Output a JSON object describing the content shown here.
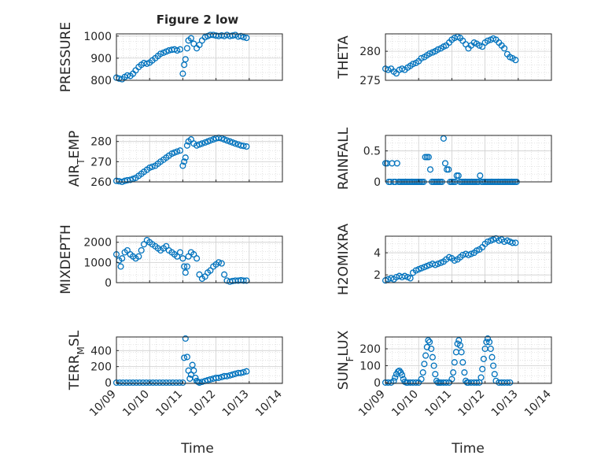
{
  "figure": {
    "title": "Figure 2 low",
    "x_axis_label": "Time",
    "x_ticks": [
      "10/09",
      "10/10",
      "10/11",
      "10/12",
      "10/13",
      "10/14"
    ],
    "marker_color": "#0072BD",
    "grid": "on (major + minor, dotted)"
  },
  "chart_data": [
    {
      "type": "scatter",
      "ylabel": "PRESSURE",
      "ylim": [
        800,
        1010
      ],
      "yticks": [
        "800",
        "900",
        "1000"
      ],
      "xlim": [
        "10/09",
        "10/14"
      ],
      "x": [
        9.0,
        9.08,
        9.17,
        9.25,
        9.33,
        9.42,
        9.5,
        9.58,
        9.67,
        9.75,
        9.83,
        9.92,
        10.0,
        10.08,
        10.17,
        10.25,
        10.33,
        10.42,
        10.5,
        10.58,
        10.67,
        10.75,
        10.83,
        10.92,
        11.0,
        11.04,
        11.08,
        11.13,
        11.17,
        11.25,
        11.33,
        11.42,
        11.5,
        11.58,
        11.67,
        11.75,
        11.83,
        11.92,
        12.0,
        12.08,
        12.17,
        12.25,
        12.33,
        12.42,
        12.5,
        12.58,
        12.67,
        12.75,
        12.83,
        12.92
      ],
      "y": [
        812,
        808,
        805,
        815,
        822,
        820,
        830,
        845,
        860,
        870,
        878,
        875,
        880,
        890,
        900,
        910,
        920,
        925,
        930,
        935,
        938,
        940,
        935,
        940,
        830,
        870,
        895,
        945,
        980,
        990,
        965,
        945,
        960,
        980,
        995,
        1000,
        1005,
        1005,
        1002,
        1000,
        1003,
        1000,
        1005,
        1000,
        1002,
        1005,
        998,
        1000,
        995,
        992
      ]
    },
    {
      "type": "scatter",
      "ylabel": "THETA",
      "ylim": [
        275,
        283
      ],
      "yticks": [
        "275",
        "280"
      ],
      "xlim": [
        "10/09",
        "10/14"
      ],
      "x": [
        9.0,
        9.08,
        9.17,
        9.25,
        9.33,
        9.42,
        9.5,
        9.58,
        9.67,
        9.75,
        9.83,
        9.92,
        10.0,
        10.08,
        10.17,
        10.25,
        10.33,
        10.42,
        10.5,
        10.58,
        10.67,
        10.75,
        10.83,
        10.92,
        11.0,
        11.08,
        11.17,
        11.25,
        11.33,
        11.42,
        11.5,
        11.58,
        11.67,
        11.75,
        11.83,
        11.92,
        12.0,
        12.08,
        12.17,
        12.25,
        12.33,
        12.42,
        12.5,
        12.58,
        12.67,
        12.75,
        12.83,
        12.92
      ],
      "y": [
        277.0,
        276.8,
        277.0,
        276.5,
        276.2,
        276.8,
        277.0,
        276.8,
        277.2,
        277.5,
        277.8,
        278.0,
        278.3,
        278.8,
        279.0,
        279.3,
        279.6,
        279.8,
        280.0,
        280.3,
        280.5,
        280.8,
        281.0,
        281.5,
        282.0,
        282.3,
        282.5,
        282.3,
        281.8,
        281.2,
        280.5,
        281.0,
        281.5,
        281.3,
        281.0,
        280.8,
        281.5,
        281.8,
        282.0,
        282.2,
        282.0,
        281.5,
        281.0,
        280.5,
        279.5,
        279.0,
        278.8,
        278.5
      ]
    },
    {
      "type": "scatter",
      "ylabel": "AIR_TEMP",
      "ylim": [
        260,
        283
      ],
      "yticks": [
        "260",
        "270",
        "280"
      ],
      "xlim": [
        "10/09",
        "10/14"
      ],
      "x": [
        9.0,
        9.08,
        9.17,
        9.25,
        9.33,
        9.42,
        9.5,
        9.58,
        9.67,
        9.75,
        9.83,
        9.92,
        10.0,
        10.08,
        10.17,
        10.25,
        10.33,
        10.42,
        10.5,
        10.58,
        10.67,
        10.75,
        10.83,
        10.92,
        11.0,
        11.04,
        11.08,
        11.13,
        11.17,
        11.25,
        11.33,
        11.42,
        11.5,
        11.58,
        11.67,
        11.75,
        11.83,
        11.92,
        12.0,
        12.08,
        12.17,
        12.25,
        12.33,
        12.42,
        12.5,
        12.58,
        12.67,
        12.75,
        12.83,
        12.92
      ],
      "y": [
        260.5,
        260.3,
        260.0,
        260.5,
        260.8,
        261.0,
        261.5,
        262.0,
        263.0,
        264.0,
        265.0,
        266.0,
        267.0,
        267.5,
        268.0,
        269.0,
        270.0,
        271.0,
        272.0,
        273.0,
        274.0,
        274.5,
        275.0,
        275.5,
        268.0,
        270.0,
        272.0,
        278.0,
        280.0,
        281.0,
        279.0,
        278.0,
        278.5,
        279.0,
        279.5,
        280.0,
        280.5,
        281.0,
        281.5,
        281.8,
        281.5,
        281.0,
        280.5,
        280.0,
        279.5,
        279.0,
        278.5,
        278.0,
        277.8,
        277.5
      ]
    },
    {
      "type": "scatter",
      "ylabel": "RAINFALL",
      "ylim": [
        0,
        0.75
      ],
      "yticks": [
        "0",
        "0.5"
      ],
      "xlim": [
        "10/09",
        "10/14"
      ],
      "x": [
        9.0,
        9.05,
        9.1,
        9.15,
        9.2,
        9.25,
        9.3,
        9.35,
        9.4,
        9.45,
        9.5,
        9.55,
        9.6,
        9.65,
        9.7,
        9.75,
        9.8,
        9.85,
        9.9,
        9.95,
        10.0,
        10.05,
        10.1,
        10.15,
        10.2,
        10.25,
        10.3,
        10.35,
        10.4,
        10.45,
        10.5,
        10.55,
        10.6,
        10.65,
        10.7,
        10.75,
        10.8,
        10.85,
        10.9,
        10.95,
        11.0,
        11.05,
        11.1,
        11.15,
        11.2,
        11.25,
        11.3,
        11.35,
        11.4,
        11.45,
        11.5,
        11.55,
        11.6,
        11.65,
        11.7,
        11.75,
        11.8,
        11.85,
        11.9,
        11.95,
        12.0,
        12.05,
        12.1,
        12.15,
        12.2,
        12.25,
        12.3,
        12.35,
        12.4,
        12.45,
        12.5,
        12.55,
        12.6,
        12.65,
        12.7,
        12.75,
        12.8,
        12.85,
        12.9,
        12.95
      ],
      "y": [
        0.3,
        0.3,
        0,
        0,
        0.3,
        0,
        0,
        0.3,
        0,
        0,
        0,
        0,
        0,
        0,
        0,
        0,
        0,
        0,
        0,
        0,
        0,
        0,
        0,
        0,
        0.4,
        0.4,
        0.4,
        0.2,
        0,
        0,
        0,
        0,
        0,
        0,
        0,
        0.7,
        0.3,
        0.2,
        0.2,
        0,
        0,
        0,
        0,
        0.1,
        0.1,
        0,
        0,
        0,
        0,
        0,
        0,
        0,
        0,
        0,
        0,
        0,
        0,
        0.1,
        0,
        0,
        0,
        0,
        0,
        0,
        0,
        0,
        0,
        0,
        0,
        0,
        0,
        0,
        0,
        0,
        0,
        0,
        0,
        0,
        0,
        0
      ]
    },
    {
      "type": "scatter",
      "ylabel": "MIXDEPTH",
      "ylim": [
        0,
        2300
      ],
      "yticks": [
        "0",
        "1000",
        "2000"
      ],
      "xlim": [
        "10/09",
        "10/14"
      ],
      "x": [
        9.0,
        9.08,
        9.13,
        9.17,
        9.25,
        9.33,
        9.42,
        9.5,
        9.58,
        9.67,
        9.75,
        9.83,
        9.92,
        10.0,
        10.08,
        10.17,
        10.25,
        10.33,
        10.42,
        10.5,
        10.58,
        10.67,
        10.75,
        10.83,
        10.92,
        11.0,
        11.04,
        11.08,
        11.13,
        11.17,
        11.25,
        11.33,
        11.42,
        11.5,
        11.58,
        11.67,
        11.75,
        11.83,
        11.92,
        12.0,
        12.08,
        12.17,
        12.25,
        12.33,
        12.42,
        12.5,
        12.58,
        12.67,
        12.75,
        12.83,
        12.92
      ],
      "y": [
        1400,
        1100,
        800,
        1200,
        1500,
        1600,
        1400,
        1300,
        1200,
        1300,
        1600,
        1900,
        2100,
        2000,
        1900,
        1800,
        1700,
        1600,
        1700,
        1800,
        1600,
        1500,
        1400,
        1300,
        1500,
        1200,
        800,
        500,
        800,
        1300,
        1500,
        1400,
        1200,
        400,
        200,
        300,
        500,
        600,
        800,
        900,
        1000,
        950,
        400,
        100,
        50,
        80,
        100,
        100,
        120,
        100,
        100
      ]
    },
    {
      "type": "scatter",
      "ylabel": "H2OMIXRA",
      "ylim": [
        1.3,
        5.5
      ],
      "yticks": [
        "2",
        "4"
      ],
      "xlim": [
        "10/09",
        "10/14"
      ],
      "x": [
        9.0,
        9.08,
        9.17,
        9.25,
        9.33,
        9.42,
        9.5,
        9.58,
        9.67,
        9.75,
        9.83,
        9.92,
        10.0,
        10.08,
        10.17,
        10.25,
        10.33,
        10.42,
        10.5,
        10.58,
        10.67,
        10.75,
        10.83,
        10.92,
        11.0,
        11.08,
        11.17,
        11.25,
        11.33,
        11.42,
        11.5,
        11.58,
        11.67,
        11.75,
        11.83,
        11.92,
        12.0,
        12.08,
        12.17,
        12.25,
        12.33,
        12.42,
        12.5,
        12.58,
        12.67,
        12.75,
        12.83,
        12.92
      ],
      "y": [
        1.5,
        1.6,
        1.7,
        1.6,
        1.8,
        1.9,
        1.8,
        1.9,
        1.8,
        1.7,
        2.2,
        2.4,
        2.5,
        2.6,
        2.7,
        2.8,
        2.9,
        3.0,
        2.9,
        3.0,
        3.1,
        3.2,
        3.4,
        3.6,
        3.5,
        3.3,
        3.4,
        3.6,
        3.8,
        3.9,
        3.8,
        3.9,
        4.0,
        4.2,
        4.3,
        4.5,
        4.8,
        5.0,
        5.1,
        5.2,
        5.3,
        5.1,
        5.2,
        5.0,
        5.1,
        5.0,
        4.9,
        4.9
      ]
    },
    {
      "type": "scatter",
      "ylabel": "TERR_MSL",
      "ylim": [
        -10,
        570
      ],
      "yticks": [
        "0",
        "200",
        "400"
      ],
      "xlim": [
        "10/09",
        "10/14"
      ],
      "x": [
        9.0,
        9.1,
        9.2,
        9.3,
        9.4,
        9.5,
        9.6,
        9.7,
        9.8,
        9.9,
        10.0,
        10.1,
        10.2,
        10.3,
        10.4,
        10.5,
        10.6,
        10.7,
        10.8,
        10.9,
        11.0,
        11.04,
        11.08,
        11.13,
        11.17,
        11.21,
        11.25,
        11.29,
        11.33,
        11.38,
        11.42,
        11.46,
        11.5,
        11.58,
        11.67,
        11.75,
        11.83,
        11.92,
        12.0,
        12.08,
        12.17,
        12.25,
        12.33,
        12.42,
        12.5,
        12.58,
        12.67,
        12.75,
        12.83,
        12.92
      ],
      "y": [
        0,
        0,
        0,
        0,
        0,
        0,
        0,
        0,
        0,
        0,
        0,
        0,
        0,
        0,
        0,
        0,
        0,
        0,
        0,
        0,
        0,
        310,
        550,
        320,
        150,
        50,
        100,
        220,
        150,
        60,
        20,
        10,
        0,
        10,
        20,
        30,
        40,
        50,
        60,
        60,
        70,
        80,
        80,
        90,
        100,
        110,
        120,
        120,
        130,
        140
      ]
    },
    {
      "type": "scatter",
      "ylabel": "SUN_FLUX",
      "ylim": [
        -5,
        270
      ],
      "yticks": [
        "0",
        "100",
        "200"
      ],
      "xlim": [
        "10/09",
        "10/14"
      ],
      "x": [
        9.0,
        9.08,
        9.17,
        9.25,
        9.29,
        9.33,
        9.38,
        9.42,
        9.46,
        9.5,
        9.54,
        9.58,
        9.63,
        9.67,
        9.75,
        9.83,
        9.92,
        10.0,
        10.08,
        10.13,
        10.17,
        10.21,
        10.25,
        10.29,
        10.33,
        10.38,
        10.42,
        10.46,
        10.5,
        10.54,
        10.58,
        10.63,
        10.67,
        10.75,
        10.83,
        10.92,
        11.0,
        11.04,
        11.08,
        11.13,
        11.17,
        11.21,
        11.25,
        11.29,
        11.33,
        11.38,
        11.42,
        11.46,
        11.5,
        11.58,
        11.67,
        11.75,
        11.83,
        11.88,
        11.92,
        11.96,
        12.0,
        12.04,
        12.08,
        12.13,
        12.17,
        12.21,
        12.25,
        12.29,
        12.33,
        12.42,
        12.5,
        12.58,
        12.67,
        12.75
      ],
      "y": [
        0,
        0,
        0,
        10,
        30,
        50,
        65,
        70,
        60,
        45,
        20,
        5,
        0,
        0,
        0,
        0,
        0,
        0,
        20,
        60,
        110,
        160,
        210,
        250,
        240,
        200,
        150,
        100,
        50,
        10,
        0,
        0,
        0,
        0,
        0,
        0,
        20,
        60,
        120,
        180,
        230,
        250,
        220,
        180,
        120,
        60,
        10,
        0,
        0,
        0,
        0,
        0,
        0,
        30,
        80,
        140,
        200,
        240,
        260,
        240,
        200,
        150,
        100,
        50,
        10,
        0,
        0,
        0,
        0,
        0
      ]
    }
  ]
}
